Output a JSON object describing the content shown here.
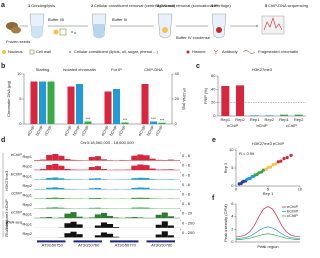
{
  "panel_a": {
    "label": "a",
    "step_numbers": [
      "1",
      "2",
      "3",
      "4",
      "5"
    ],
    "steps": [
      "Grinding/lysis",
      "Cellular constituent removal (centrifuge/wash)",
      "Cell wall removal (sonication/centrifuge)",
      "IP",
      "ChIP-DNA sequencing"
    ],
    "notes": [
      "Frozen seeds",
      "Buffer I/II",
      "Buffer III",
      "Buffer IV condense"
    ],
    "legend": [
      "Nucleus",
      "Cell wall",
      "Cellular constituent (lipids, oil, sugar, phenol ...)",
      "Histone",
      "Antibody",
      "Fragmented chromatin"
    ]
  },
  "panel_b": {
    "label": "b",
    "type": "bar",
    "ylabel": "Chromatin DNA (μg)",
    "y2label": "IP-DNA (ng)",
    "categories": [
      "Starting",
      "Isolated chromatin",
      "For IP",
      "ChIP-DNA"
    ],
    "ylim": [
      0,
      10
    ],
    "yticks": [
      0,
      5,
      10
    ],
    "y2lim": [
      0,
      40
    ],
    "y2ticks": [
      0,
      20,
      40
    ],
    "series": [
      {
        "name": "eChIP",
        "color": "#d7263d",
        "values": [
          8.5,
          7.5,
          6.5,
          null
        ]
      },
      {
        "name": "bChIP",
        "color": "#1f9bd7",
        "values": [
          8.5,
          8.0,
          7.0,
          null
        ]
      },
      {
        "name": "cChIP",
        "color": "#3aa845",
        "values": [
          8.5,
          0.5,
          0.3,
          null
        ]
      },
      {
        "name": "eChIP",
        "color": "#d7263d",
        "axis": "y2",
        "values": [
          null,
          null,
          null,
          32
        ]
      },
      {
        "name": "bChIP",
        "color": "#1f9bd7",
        "axis": "y2",
        "values": [
          null,
          null,
          null,
          2
        ]
      },
      {
        "name": "cChIP",
        "color": "#3aa845",
        "axis": "y2",
        "values": [
          null,
          null,
          null,
          1
        ]
      }
    ],
    "annotations": [
      {
        "text": "***",
        "series": 2,
        "category": 1
      },
      {
        "text": "***",
        "series": 2,
        "category": 2
      },
      {
        "text": "***",
        "series": 4,
        "category": 3
      },
      {
        "text": "***",
        "series": 5,
        "category": 3
      }
    ]
  },
  "panel_c": {
    "label": "c",
    "type": "bar",
    "title": "H3K27me3",
    "ylabel": "FRiP (%)",
    "categories": [
      "Rep1",
      "Rep2",
      "Rep1",
      "Rep2",
      "Rep1",
      "Rep2"
    ],
    "groups": [
      "eChIP",
      "bChIP",
      "cChIP"
    ],
    "values": [
      45,
      46,
      1,
      1,
      2,
      2
    ],
    "colors": [
      "#d7263d",
      "#d7263d",
      "#1f9bd7",
      "#1f9bd7",
      "#3aa845",
      "#3aa845"
    ],
    "ylim": [
      0,
      60
    ],
    "yticks": [
      0,
      20,
      40,
      60
    ],
    "reference_line": 20
  },
  "panel_d": {
    "label": "d",
    "region": "Chr3:18,560,000 - 18,600,000",
    "groups": [
      {
        "name": "H3K27me3",
        "tracks": [
          0,
          5
        ]
      },
      {
        "name": "H3K4me3 eChIP",
        "tracks": [
          6,
          6
        ]
      },
      {
        "name": "RNA-seq",
        "tracks": [
          7,
          8
        ]
      }
    ],
    "tracks": [
      {
        "name": "eChIP",
        "rep": "Rep1",
        "color": "#d7263d",
        "range": {
          "value": 6,
          "label": "0 - 6"
        },
        "values": [
          0.5,
          0.8,
          4.5,
          5.2,
          3.8,
          1.2,
          0.6,
          0.4,
          0.3,
          2.8,
          3.5,
          1.0,
          0.4,
          0.3,
          0.5,
          0.4,
          3.9,
          4.8,
          4.2,
          1.5,
          0.6,
          0.5,
          0.8,
          0.4
        ]
      },
      {
        "name": "eChIP",
        "rep": "Rep2",
        "color": "#d7263d",
        "range": {
          "value": 6,
          "label": "0 - 6"
        },
        "values": [
          0.4,
          0.9,
          4.1,
          5.0,
          3.5,
          1.0,
          0.5,
          0.4,
          0.4,
          2.5,
          3.2,
          0.9,
          0.3,
          0.4,
          0.4,
          0.5,
          3.6,
          4.5,
          4.0,
          1.3,
          0.5,
          0.6,
          0.7,
          0.3
        ]
      },
      {
        "name": "bChIP",
        "rep": "Rep1",
        "color": "#1f9bd7",
        "range": {
          "value": 6,
          "label": "0 - 6"
        },
        "values": [
          0.3,
          0.4,
          1.5,
          1.8,
          1.2,
          0.5,
          0.3,
          0.3,
          0.2,
          1.0,
          1.2,
          0.4,
          0.2,
          0.2,
          0.3,
          0.3,
          1.3,
          1.6,
          1.4,
          0.5,
          0.3,
          0.3,
          0.4,
          0.2
        ]
      },
      {
        "name": "bChIP",
        "rep": "Rep2",
        "color": "#1f9bd7",
        "range": {
          "value": 6,
          "label": "0 - 6"
        },
        "values": [
          0.3,
          0.3,
          1.3,
          1.6,
          1.1,
          0.4,
          0.3,
          0.2,
          0.2,
          0.9,
          1.1,
          0.4,
          0.2,
          0.3,
          0.2,
          0.3,
          1.2,
          1.5,
          1.3,
          0.4,
          0.3,
          0.2,
          0.3,
          0.2
        ]
      },
      {
        "name": "cChIP",
        "rep": "Rep1",
        "color": "#3aa845",
        "range": {
          "value": 6,
          "label": "0 - 6"
        },
        "values": [
          0.3,
          0.3,
          0.9,
          1.1,
          0.8,
          0.4,
          0.3,
          0.3,
          0.2,
          0.7,
          0.8,
          0.3,
          0.2,
          0.2,
          0.3,
          0.2,
          0.9,
          1.0,
          0.9,
          0.4,
          0.3,
          0.2,
          0.3,
          0.2
        ]
      },
      {
        "name": "cChIP",
        "rep": "Rep2",
        "color": "#3aa845",
        "range": {
          "value": 6,
          "label": "0 - 6"
        },
        "values": [
          0.2,
          0.3,
          0.8,
          1.0,
          0.7,
          0.3,
          0.2,
          0.2,
          0.2,
          0.6,
          0.7,
          0.3,
          0.2,
          0.2,
          0.2,
          0.2,
          0.8,
          0.9,
          0.8,
          0.3,
          0.2,
          0.2,
          0.2,
          0.2
        ]
      },
      {
        "name": "eChIP",
        "rep": "Rep1",
        "color": "#2e7d32",
        "range": {
          "value": 20,
          "label": "0 - 20"
        },
        "values": [
          1,
          2,
          3,
          1,
          2,
          12,
          16,
          4,
          1,
          2,
          10,
          14,
          6,
          2,
          1,
          2,
          3,
          2,
          1,
          1,
          9,
          15,
          5,
          1
        ]
      },
      {
        "name": "RNA-seq",
        "rep": "Rep1",
        "color": "#111111",
        "range": {
          "value": 200,
          "label": "0 - 200"
        },
        "values": [
          0,
          0,
          0,
          0,
          5,
          120,
          160,
          90,
          0,
          0,
          60,
          140,
          100,
          20,
          0,
          0,
          0,
          0,
          0,
          0,
          80,
          170,
          60,
          0
        ]
      },
      {
        "name": "RNA-seq",
        "rep": "Rep2",
        "color": "#111111",
        "range": {
          "value": 200,
          "label": "0 - 200"
        },
        "values": [
          0,
          0,
          0,
          0,
          4,
          110,
          150,
          85,
          0,
          0,
          55,
          130,
          95,
          18,
          0,
          0,
          0,
          0,
          0,
          0,
          75,
          160,
          55,
          0
        ]
      }
    ],
    "genes": [
      "AT3G50750",
      "AT3G50760",
      "AT3G50770",
      "AT3G50780"
    ]
  },
  "panel_e": {
    "label": "e",
    "type": "scatter",
    "title": "H3K27me3 eChIP",
    "annotation": "R = 0.99",
    "xlabel": "Rep 1",
    "ylabel": "Rep 2",
    "xlim": [
      0,
      10
    ],
    "ylim": [
      0,
      10
    ],
    "xticks": [
      0,
      5,
      10
    ],
    "yticks": [
      0,
      5,
      10
    ],
    "x": [
      0.5,
      0.8,
      1.0,
      1.2,
      1.5,
      1.7,
      2.0,
      2.2,
      2.5,
      2.8,
      3.0,
      3.3,
      3.6,
      4.0,
      4.3,
      4.7,
      5.0,
      5.4,
      5.8,
      6.2,
      6.6,
      7.0,
      7.5,
      8.0,
      8.6
    ],
    "y": [
      0.6,
      0.7,
      1.1,
      1.3,
      1.4,
      1.8,
      2.1,
      2.1,
      2.6,
      2.7,
      3.1,
      3.2,
      3.7,
      3.9,
      4.4,
      4.6,
      5.1,
      5.3,
      5.9,
      6.1,
      6.7,
      6.9,
      7.6,
      7.9,
      8.5
    ]
  },
  "panel_f": {
    "label": "f",
    "type": "line",
    "xlabel": "Peak region",
    "ylabel": "Peak intensity (CPM)",
    "x": [
      0,
      1,
      2,
      3,
      4,
      5,
      6,
      7,
      8,
      9,
      10,
      11,
      12,
      13,
      14
    ],
    "xlim": [
      0,
      14
    ],
    "ylim": [
      0,
      6
    ],
    "yticks": [
      0,
      2,
      4,
      6
    ],
    "series": [
      {
        "name": "eChIP",
        "color": "#d7263d",
        "values": [
          0.8,
          0.9,
          1.1,
          1.6,
          2.6,
          4.0,
          5.2,
          5.6,
          5.2,
          4.0,
          2.6,
          1.6,
          1.1,
          0.9,
          0.8
        ]
      },
      {
        "name": "bChIP",
        "color": "#1f9bd7",
        "values": [
          0.5,
          0.6,
          0.7,
          0.9,
          1.3,
          1.8,
          2.2,
          2.4,
          2.2,
          1.8,
          1.3,
          0.9,
          0.7,
          0.6,
          0.5
        ]
      },
      {
        "name": "cChIP",
        "color": "#3aa845",
        "values": [
          0.4,
          0.4,
          0.5,
          0.6,
          0.8,
          1.0,
          1.2,
          1.3,
          1.2,
          1.0,
          0.8,
          0.6,
          0.5,
          0.4,
          0.4
        ]
      }
    ]
  }
}
